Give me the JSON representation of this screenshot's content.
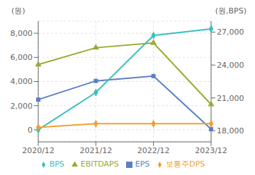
{
  "chart_data": {
    "type": "line",
    "ylabel": "(원)",
    "y2label": "(원,BPS)",
    "categories": [
      "2020/12",
      "2021/12",
      "2022/12",
      "2023/12"
    ],
    "series": [
      {
        "name": "EPS",
        "color": "#5b7fc7",
        "marker": "square",
        "values": [
          2500,
          4050,
          4450,
          50
        ]
      },
      {
        "name": "BPS",
        "color": "#3abfbf",
        "marker": "diamond",
        "axis": "y2",
        "values": [
          18100,
          21500,
          26700,
          27300
        ]
      },
      {
        "name": "EBITDAPS",
        "color": "#9aaa33",
        "marker": "triangle",
        "values": [
          5400,
          6800,
          7200,
          2100
        ]
      },
      {
        "name": "보통주DPS",
        "color": "#f0a030",
        "marker": "diamond",
        "values": [
          200,
          500,
          500,
          500
        ]
      }
    ],
    "ylim": [
      -1000,
      9000
    ],
    "yticks": [
      0,
      {
        "value": 2000,
        "label": "2,000"
      },
      {
        "value": 4000,
        "label": "4,000"
      },
      {
        "value": 6000,
        "label": "6,000"
      },
      {
        "value": 8000,
        "label": "8,000"
      }
    ],
    "y2lim": [
      17000,
      28000
    ],
    "y2ticks": [
      {
        "value": 18000,
        "label": "18,000"
      },
      {
        "value": 21000,
        "label": "21,000"
      },
      {
        "value": 24000,
        "label": "24,000"
      },
      {
        "value": 27000,
        "label": "27,000"
      }
    ],
    "grid": true,
    "legend": "bottom"
  }
}
